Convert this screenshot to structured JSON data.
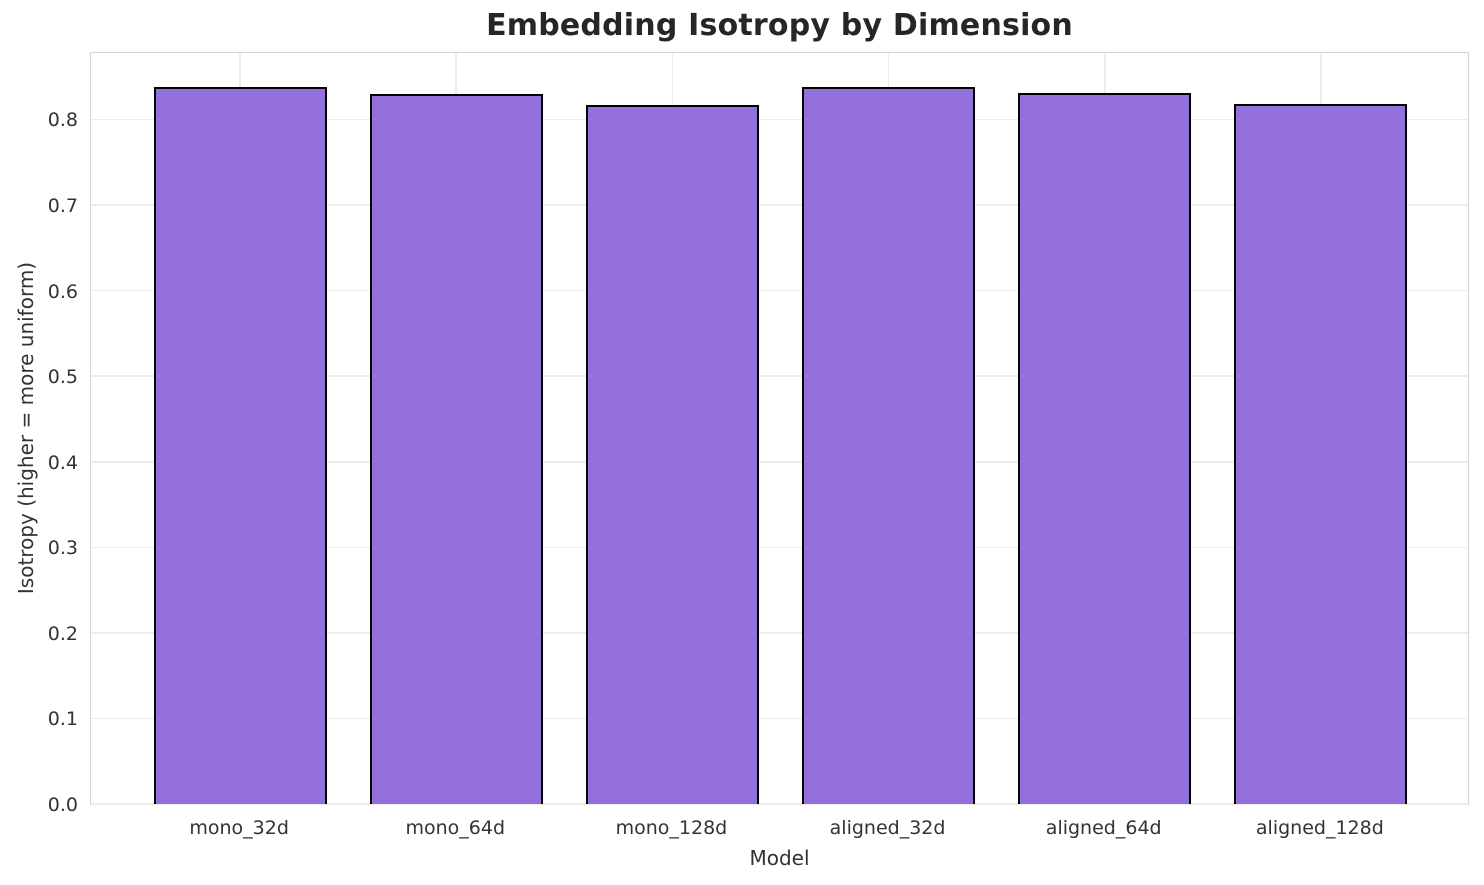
{
  "chart_data": {
    "type": "bar",
    "title": "Embedding Isotropy by Dimension",
    "xlabel": "Model",
    "ylabel": "Isotropy (higher = more uniform)",
    "categories": [
      "mono_32d",
      "mono_64d",
      "mono_128d",
      "aligned_32d",
      "aligned_64d",
      "aligned_128d"
    ],
    "values": [
      0.838,
      0.83,
      0.817,
      0.838,
      0.831,
      0.818
    ],
    "ylim": [
      0,
      0.88
    ],
    "yticks": [
      {
        "value": 0.0,
        "label": "0.0"
      },
      {
        "value": 0.1,
        "label": "0.1"
      },
      {
        "value": 0.2,
        "label": "0.2"
      },
      {
        "value": 0.3,
        "label": "0.3"
      },
      {
        "value": 0.4,
        "label": "0.4"
      },
      {
        "value": 0.5,
        "label": "0.5"
      },
      {
        "value": 0.6,
        "label": "0.6"
      },
      {
        "value": 0.7,
        "label": "0.7"
      },
      {
        "value": 0.8,
        "label": "0.8"
      }
    ],
    "grid": true,
    "legend": "none",
    "bar_color": "#9370db",
    "bar_edge_color": "#000000",
    "grid_color": "#ececec",
    "spine_color": "#d4d4d4",
    "background_color": "#ffffff",
    "title_color": "#262626",
    "text_color": "#333333"
  }
}
